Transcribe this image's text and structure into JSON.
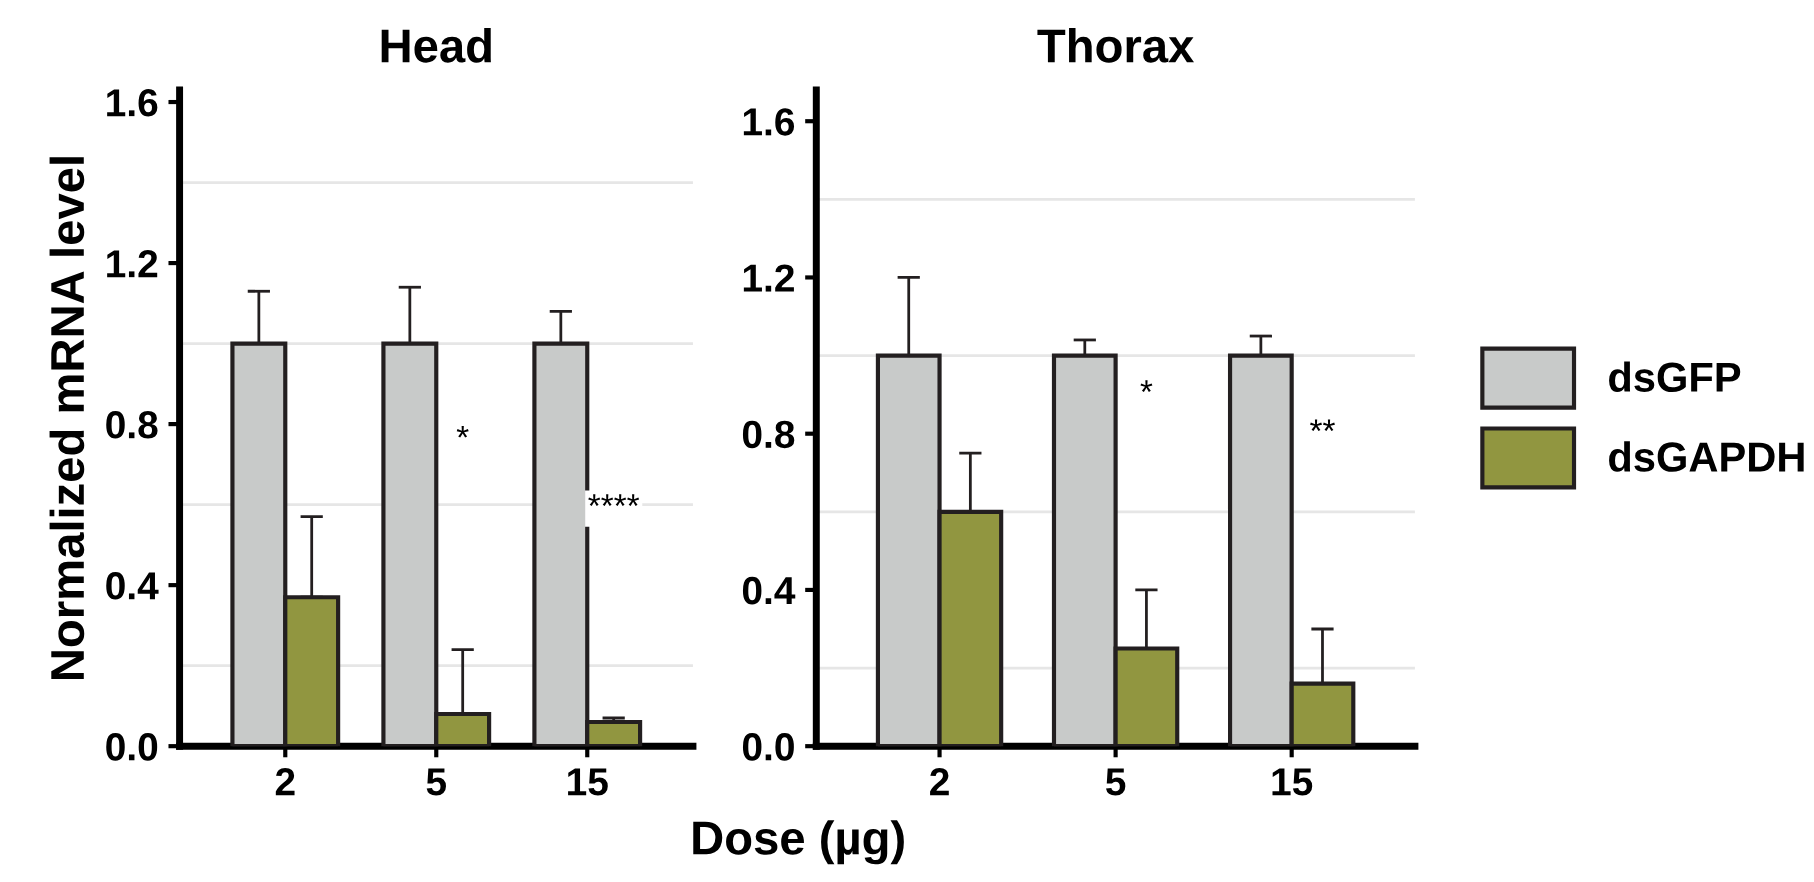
{
  "chart_data": [
    {
      "type": "bar",
      "title": "Head",
      "ylabel": "Normalized mRNA level",
      "xlabel": "Dose (µg)",
      "categories": [
        "2",
        "5",
        "15"
      ],
      "series": [
        {
          "color": "#c8cac9",
          "values": [
            1.0,
            1.0,
            1.0
          ],
          "errors": [
            0.13,
            0.14,
            0.08
          ]
        },
        {
          "color": "#919640",
          "values": [
            0.37,
            0.08,
            0.06
          ],
          "errors": [
            0.2,
            0.16,
            0.01
          ]
        }
      ],
      "ylim": [
        0,
        1.63
      ],
      "yticks": [
        {
          "value": 0,
          "label": "0.0"
        },
        0.4,
        0.8,
        1.2,
        1.6
      ],
      "ref_lines": [
        {
          "axis": "y",
          "value": 0.2,
          "color": "#e6e6e6"
        },
        {
          "axis": "y",
          "value": 0.6,
          "color": "#e6e6e6"
        },
        {
          "axis": "y",
          "value": 1.0,
          "color": "#e6e6e6"
        },
        {
          "axis": "y",
          "value": 1.4,
          "color": "#e6e6e6"
        }
      ],
      "annotations": [
        {
          "text": "*",
          "x": "5",
          "y": 0.76
        },
        {
          "text": "****",
          "x": "15",
          "y": 0.59
        }
      ]
    },
    {
      "type": "bar",
      "title": "Thorax",
      "categories": [
        "2",
        "5",
        "15"
      ],
      "series": [
        {
          "name": "dsGFP",
          "color": "#c8cac9",
          "values": [
            1.0,
            1.0,
            1.0
          ],
          "errors": [
            0.2,
            0.04,
            0.05
          ]
        },
        {
          "name": "dsGAPDH",
          "color": "#919640",
          "values": [
            0.6,
            0.25,
            0.16
          ],
          "errors": [
            0.15,
            0.15,
            0.14
          ]
        }
      ],
      "ylim": [
        0,
        1.68
      ],
      "yticks": [
        {
          "value": 0,
          "label": "0.0"
        },
        0.4,
        0.8,
        1.2,
        1.6
      ],
      "ref_lines": [
        {
          "axis": "y",
          "value": 0.2,
          "color": "#e6e6e6"
        },
        {
          "axis": "y",
          "value": 0.6,
          "color": "#e6e6e6"
        },
        {
          "axis": "y",
          "value": 1.0,
          "color": "#e6e6e6"
        },
        {
          "axis": "y",
          "value": 1.4,
          "color": "#e6e6e6"
        }
      ],
      "annotations": [
        {
          "text": "*",
          "x": "5",
          "y": 0.9
        },
        {
          "text": "**",
          "x": "15",
          "y": 0.8
        }
      ],
      "legend": "right"
    }
  ]
}
